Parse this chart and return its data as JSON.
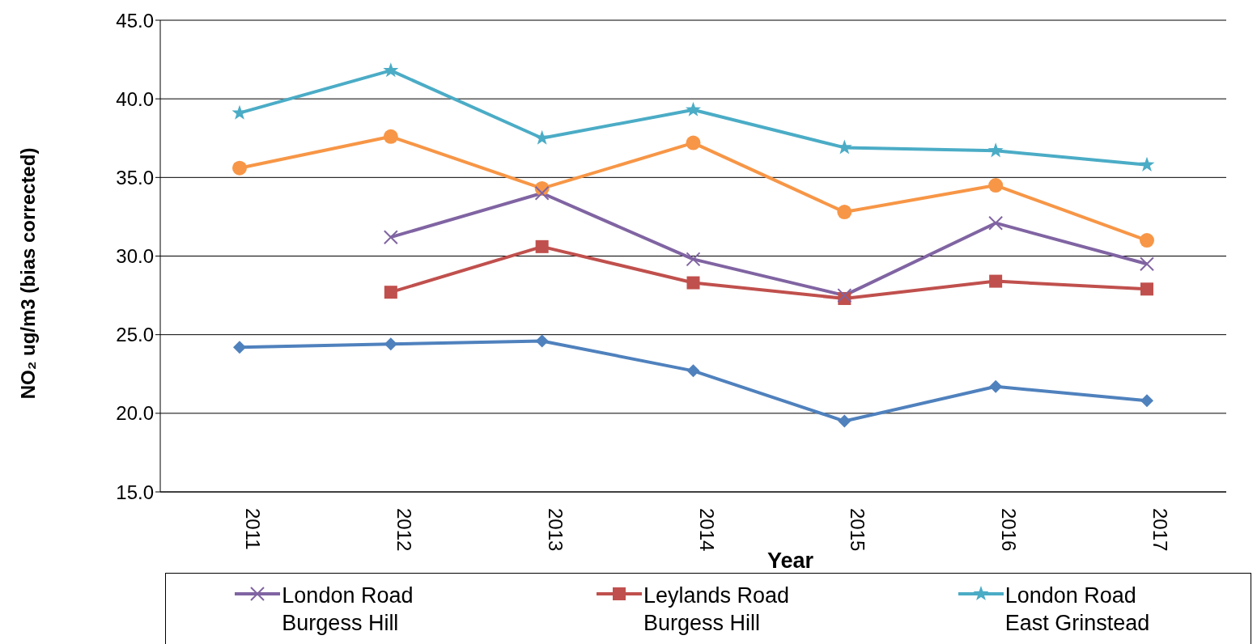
{
  "chart_data": {
    "type": "line",
    "xlabel": "Year",
    "ylabel": "NO₂ ug/m3 (bias corrected)",
    "categories": [
      "2011",
      "2012",
      "2013",
      "2014",
      "2015",
      "2016",
      "2017"
    ],
    "series": [
      {
        "name": "London Road Burgess Hill",
        "color": "#8064a2",
        "marker": "cross",
        "values": [
          null,
          31.2,
          34.0,
          29.8,
          27.5,
          32.1,
          29.5
        ]
      },
      {
        "name": "Leylands Road Burgess Hill",
        "color": "#c0504d",
        "marker": "square",
        "values": [
          null,
          27.7,
          30.6,
          28.3,
          27.3,
          28.4,
          27.9
        ]
      },
      {
        "name": "London Road East Grinstead",
        "color": "#4bacc6",
        "marker": "star",
        "values": [
          39.1,
          41.8,
          37.5,
          39.3,
          36.9,
          36.7,
          35.8
        ]
      },
      {
        "color": "#f79646",
        "marker": "circle",
        "values": [
          35.6,
          37.6,
          34.3,
          37.2,
          32.8,
          34.5,
          31.0
        ]
      },
      {
        "color": "#4f81bd",
        "marker": "diamond",
        "values": [
          24.2,
          24.4,
          24.6,
          22.7,
          19.5,
          21.7,
          20.8
        ]
      }
    ],
    "ylim": [
      15,
      45
    ],
    "yticks": [
      {
        "value": 15,
        "label": "15.0"
      },
      {
        "value": 20,
        "label": "20.0"
      },
      {
        "value": 25,
        "label": "25.0"
      },
      {
        "value": 30,
        "label": "30.0"
      },
      {
        "value": 35,
        "label": "35.0"
      },
      {
        "value": 40,
        "label": "40.0"
      },
      {
        "value": 45,
        "label": "45.0"
      }
    ],
    "grid": "y",
    "legend": "bottom",
    "line_style": "solid"
  }
}
